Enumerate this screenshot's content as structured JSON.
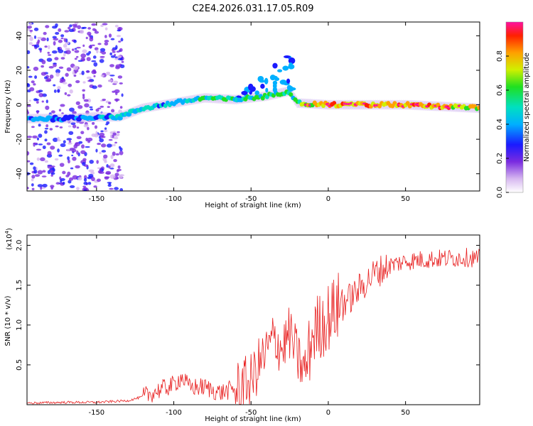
{
  "title": "C2E4.2026.031.17.05.R09",
  "colors": {
    "snr_line": "#e82020",
    "axis": "#000000"
  },
  "chart_data": [
    {
      "type": "heatmap",
      "name": "spectrogram",
      "xlabel": "Height of straight line (km)",
      "ylabel": "Frequency (Hz)",
      "xlim": [
        -195,
        98
      ],
      "ylim": [
        -50,
        48
      ],
      "xticks": [
        -150,
        -100,
        -50,
        0,
        50
      ],
      "xtick_labels": [
        "-150",
        "-100",
        "-50",
        "0",
        "50"
      ],
      "yticks": [
        -40,
        -20,
        0,
        20,
        40
      ],
      "ytick_labels": [
        "-40",
        "-20",
        "0",
        "20",
        "40"
      ],
      "colorbar": {
        "label": "Normalized spectral amplitude",
        "range": [
          0,
          1
        ],
        "ticks": [
          0.0,
          0.2,
          0.4,
          0.6,
          0.8
        ],
        "tick_labels": [
          "0.0",
          "0.2",
          "0.4",
          "0.6",
          "0.8"
        ]
      },
      "ridge": {
        "x": [
          -195,
          -170,
          -150,
          -135,
          -120,
          -100,
          -80,
          -60,
          -40,
          -25,
          -20,
          0,
          50,
          98
        ],
        "freq": [
          -8,
          -8,
          -7,
          -7,
          -2,
          1,
          4,
          3,
          5,
          8,
          1,
          0,
          0,
          -2
        ],
        "amplitude": [
          0.3,
          0.3,
          0.3,
          0.35,
          0.35,
          0.4,
          0.45,
          0.45,
          0.5,
          0.4,
          0.6,
          0.75,
          0.8,
          0.7
        ]
      }
    },
    {
      "type": "line",
      "name": "snr",
      "xlabel": "Height of straight line (km)",
      "ylabel": "SNR (10 * v/v)",
      "y_multiplier": "(x10^4)",
      "multiplier_base": "(x10",
      "multiplier_exp": "4",
      "multiplier_close": ")",
      "xlim": [
        -195,
        98
      ],
      "ylim": [
        0,
        2.13
      ],
      "xticks": [
        -150,
        -100,
        -50,
        0,
        50
      ],
      "xtick_labels": [
        "-150",
        "-100",
        "-50",
        "0",
        "50"
      ],
      "yticks": [
        0.5,
        1.0,
        1.5,
        2.0
      ],
      "ytick_labels": [
        "0.5",
        "1.0",
        "1.5",
        "2.0"
      ],
      "series": [
        {
          "name": "SNR",
          "x": [
            -195,
            -170,
            -150,
            -130,
            -120,
            -110,
            -100,
            -95,
            -90,
            -80,
            -70,
            -60,
            -50,
            -45,
            -40,
            -35,
            -30,
            -25,
            -20,
            -15,
            -10,
            -5,
            0,
            5,
            10,
            15,
            20,
            25,
            30,
            40,
            50,
            60,
            70,
            80,
            90,
            98
          ],
          "y": [
            0.02,
            0.03,
            0.03,
            0.05,
            0.1,
            0.18,
            0.25,
            0.35,
            0.22,
            0.22,
            0.15,
            0.2,
            0.3,
            0.5,
            0.65,
            0.85,
            0.7,
            0.9,
            0.6,
            0.4,
            0.9,
            1.0,
            1.1,
            1.2,
            1.3,
            1.35,
            1.45,
            1.55,
            1.65,
            1.75,
            1.8,
            1.82,
            1.83,
            1.84,
            1.85,
            1.83
          ]
        }
      ]
    }
  ]
}
